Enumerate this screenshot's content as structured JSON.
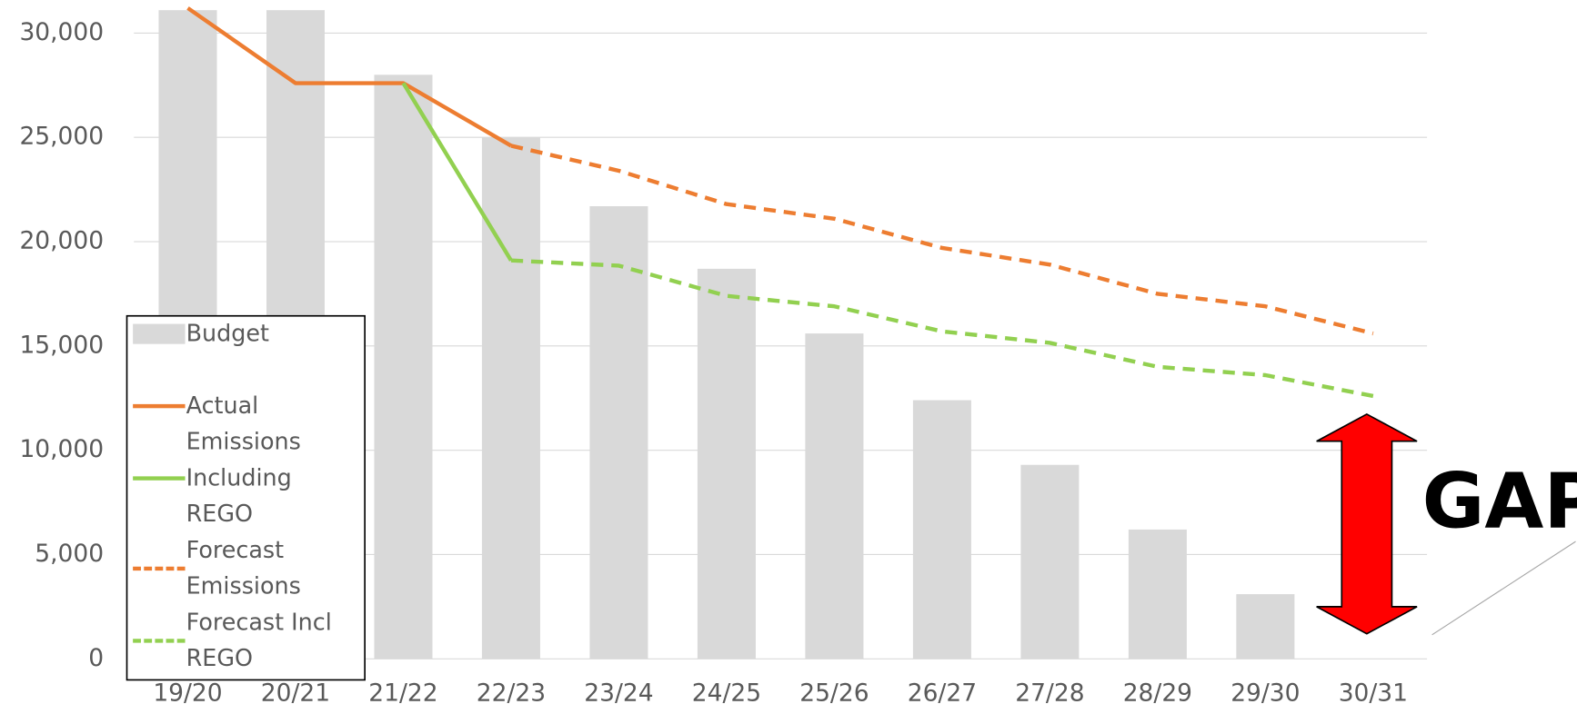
{
  "chart_data": {
    "type": "bar_line",
    "categories": [
      "19/20",
      "20/21",
      "21/22",
      "22/23",
      "23/24",
      "24/25",
      "25/26",
      "26/27",
      "27/28",
      "28/29",
      "29/30",
      "30/31"
    ],
    "series": [
      {
        "name": "Budget",
        "type": "bar",
        "color": "#d9d9d9",
        "values": [
          31100,
          31100,
          28000,
          25000,
          21700,
          18700,
          15600,
          12400,
          9300,
          6200,
          3100,
          0
        ]
      },
      {
        "name": "Actual",
        "type": "line",
        "color": "#ed7d31",
        "dashed": false,
        "values": [
          31200,
          27600,
          27600,
          24600,
          null,
          null,
          null,
          null,
          null,
          null,
          null,
          null
        ]
      },
      {
        "name": "Emissions Including REGO",
        "type": "line",
        "color": "#92d050",
        "dashed": false,
        "values": [
          null,
          null,
          27600,
          19100,
          null,
          null,
          null,
          null,
          null,
          null,
          null,
          null
        ]
      },
      {
        "name": "Forecast Emissions",
        "type": "line",
        "color": "#ed7d31",
        "dashed": true,
        "values": [
          null,
          null,
          null,
          24600,
          23400,
          21800,
          21100,
          19700,
          18900,
          17500,
          16900,
          15600
        ]
      },
      {
        "name": "Forecast Incl REGO",
        "type": "line",
        "color": "#92d050",
        "dashed": true,
        "values": [
          null,
          null,
          null,
          19100,
          18850,
          17400,
          16900,
          15700,
          15150,
          14000,
          13600,
          12600
        ]
      }
    ],
    "ylim": [
      0,
      30000
    ],
    "yticks": [
      0,
      {
        "value": 5000,
        "label": "5,000"
      },
      {
        "value": 10000,
        "label": "10,000"
      },
      {
        "value": 15000,
        "label": "15,000"
      },
      {
        "value": 20000,
        "label": "20,000"
      },
      {
        "value": 25000,
        "label": "25,000"
      },
      {
        "value": 30000,
        "label": "30,000"
      }
    ],
    "grid": true,
    "annotation": "GAP"
  }
}
